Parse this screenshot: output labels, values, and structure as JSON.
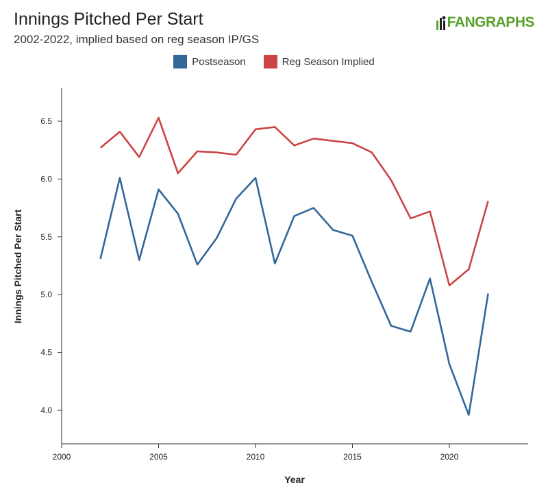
{
  "header": {
    "title": "Innings Pitched Per Start",
    "subtitle": "2002-2022, implied based on reg season IP/GS",
    "logo_text": "FANGRAPHS"
  },
  "chart_data": {
    "type": "line",
    "xlabel": "Year",
    "ylabel": "Innings Pitched Per Start",
    "xlim": [
      2000,
      2024
    ],
    "ylim": [
      3.7,
      6.8
    ],
    "xticks": [
      2000,
      2005,
      2010,
      2015,
      2020
    ],
    "yticks": [
      4.0,
      4.5,
      5.0,
      5.5,
      6.0,
      6.5
    ],
    "grid": false,
    "legend_position": "top-center",
    "x": [
      2002,
      2003,
      2004,
      2005,
      2006,
      2007,
      2008,
      2009,
      2010,
      2011,
      2012,
      2013,
      2014,
      2015,
      2016,
      2017,
      2018,
      2019,
      2020,
      2021,
      2022
    ],
    "series": [
      {
        "name": "Postseason",
        "color": "#336699",
        "values": [
          5.31,
          6.01,
          5.3,
          5.91,
          5.7,
          5.26,
          5.49,
          5.83,
          6.01,
          5.27,
          5.68,
          5.75,
          5.56,
          5.51,
          5.11,
          4.73,
          4.68,
          5.14,
          4.4,
          3.96,
          5.01
        ]
      },
      {
        "name": "Reg Season Implied",
        "color": "#cc4444",
        "values": [
          6.27,
          6.41,
          6.19,
          6.53,
          6.05,
          6.24,
          6.23,
          6.21,
          6.43,
          6.45,
          6.29,
          6.35,
          6.33,
          6.31,
          6.23,
          5.99,
          5.66,
          5.72,
          5.08,
          5.22,
          5.81
        ]
      }
    ]
  }
}
